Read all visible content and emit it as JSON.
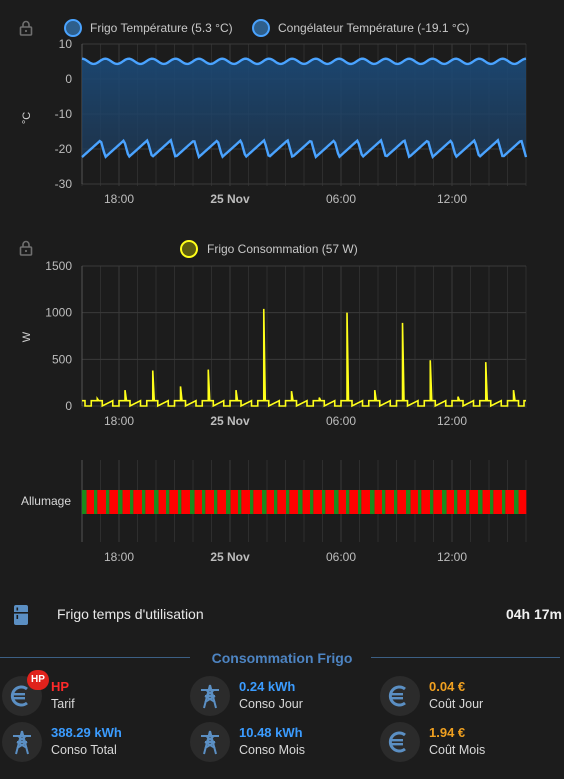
{
  "colors": {
    "background": "#1c1c1c",
    "fridge_temp": "#4aa3ff",
    "freezer_temp": "#4aa3ff",
    "consumption": "#ffff1a",
    "on_state": "#1c8a1c",
    "off_state": "#ff0000",
    "section_title": "#4d84c2",
    "value_blue": "#3b9cff",
    "value_orange": "#f0a020",
    "value_red": "#ff2a2a",
    "icon": "#5b8fc3"
  },
  "x_ticks": [
    "18:00",
    "25 Nov",
    "06:00",
    "12:00"
  ],
  "chart_data": [
    {
      "type": "line",
      "title": "",
      "ylabel": "°C",
      "ylim": [
        -30,
        10
      ],
      "y_ticks": [
        "10",
        "0",
        "-10",
        "-20",
        "-30"
      ],
      "fill_between": true,
      "series": [
        {
          "name": "Frigo Température (5.3 °C)",
          "cycle_min": 4.3,
          "cycle_max": 5.8,
          "cycles": 19
        },
        {
          "name": "Congélateur Température (-19.1 °C)",
          "cycle_min": -22.3,
          "cycle_max": -17.5,
          "cycles": 19
        }
      ]
    },
    {
      "type": "line",
      "step": true,
      "title": "",
      "ylabel": "W",
      "ylim": [
        0,
        1500
      ],
      "y_ticks": [
        "1500",
        "1000",
        "500",
        "0"
      ],
      "series": [
        {
          "name": "Frigo Consommation (57 W)",
          "base": 0,
          "on_level": 57
        }
      ],
      "peaks": [
        80,
        170,
        380,
        210,
        390,
        170,
        1040,
        160,
        90,
        1000,
        170,
        890,
        490,
        100,
        470,
        170
      ]
    },
    {
      "type": "timeline",
      "row_label": "Allumage",
      "states": [
        "on",
        "off"
      ],
      "segments": 37
    }
  ],
  "info": {
    "label": "Frigo temps d'utilisation",
    "value": "04h 17m"
  },
  "section_title": "Consommation Frigo",
  "tiles": [
    {
      "icon": "euro-icon",
      "value": "HP",
      "label": "Tarif",
      "badge": "HP",
      "color": "red"
    },
    {
      "icon": "transmission-tower-icon",
      "value": "0.24 kWh",
      "label": "Conso Jour",
      "color": "blue"
    },
    {
      "icon": "euro-icon",
      "value": "0.04 €",
      "label": "Coût Jour",
      "color": "orange"
    },
    {
      "icon": "transmission-tower-icon",
      "value": "388.29 kWh",
      "label": "Conso Total",
      "color": "blue"
    },
    {
      "icon": "transmission-tower-icon",
      "value": "10.48 kWh",
      "label": "Conso Mois",
      "color": "blue"
    },
    {
      "icon": "euro-icon",
      "value": "1.94 €",
      "label": "Coût Mois",
      "color": "orange"
    }
  ]
}
